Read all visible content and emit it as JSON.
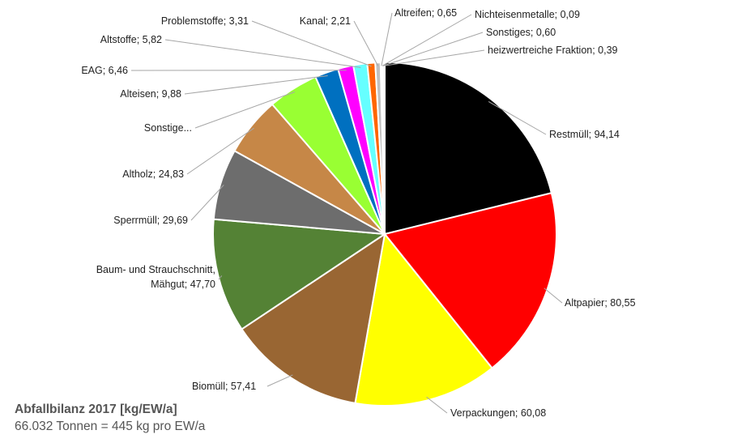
{
  "chart_data": {
    "type": "pie",
    "title": "Abfallbilanz 2017 [kg/EW/a]",
    "subtitle": "66.032 Tonnen = 445 kg pro EW/a",
    "slices": [
      {
        "label": "Restmüll",
        "display": "Restmüll; 94,14",
        "value": 94.14,
        "color": "#000000"
      },
      {
        "label": "Altpapier",
        "display": "Altpapier; 80,55",
        "value": 80.55,
        "color": "#ff0000"
      },
      {
        "label": "Verpackungen",
        "display": "Verpackungen; 60,08",
        "value": 60.08,
        "color": "#ffff00"
      },
      {
        "label": "Biomüll",
        "display": "Biomüll; 57,41",
        "value": 57.41,
        "color": "#996633"
      },
      {
        "label": "Baum- und Strauchschnitt, Mähgut",
        "display": "Baum- und Strauchschnitt,\nMähgut; 47,70",
        "value": 47.7,
        "color": "#548235"
      },
      {
        "label": "Sperrmüll",
        "display": "Sperrmüll; 29,69",
        "value": 29.69,
        "color": "#6d6d6d"
      },
      {
        "label": "Altholz",
        "display": "Altholz; 24,83",
        "value": 24.83,
        "color": "#c68747"
      },
      {
        "label": "Sonstige...",
        "display": "Sonstige...",
        "value": null,
        "color": "#99ff33"
      },
      {
        "label": "Alteisen",
        "display": "Alteisen; 9,88",
        "value": 9.88,
        "color": "#0070c0"
      },
      {
        "label": "EAG",
        "display": "EAG; 6,46",
        "value": 6.46,
        "color": "#ff00ff"
      },
      {
        "label": "Altstoffe",
        "display": "Altstoffe; 5,82",
        "value": 5.82,
        "color": "#66ffff"
      },
      {
        "label": "Problemstoffe",
        "display": "Problemstoffe; 3,31",
        "value": 3.31,
        "color": "#ff6600"
      },
      {
        "label": "Kanal",
        "display": "Kanal; 2,21",
        "value": 2.21,
        "color": "#c0c0c0"
      },
      {
        "label": "Altreifen",
        "display": "Altreifen; 0,65",
        "value": 0.65,
        "color": "#333399"
      },
      {
        "label": "Nichteisenmetalle",
        "display": "Nichteisenmetalle; 0,09",
        "value": 0.09,
        "color": "#808000"
      },
      {
        "label": "Sonstiges",
        "display": "Sonstiges; 0,60",
        "value": 0.6,
        "color": "#ff99cc"
      },
      {
        "label": "heizwertreiche Fraktion",
        "display": "heizwertreiche Fraktion; 0,39",
        "value": 0.39,
        "color": "#996699"
      }
    ]
  }
}
